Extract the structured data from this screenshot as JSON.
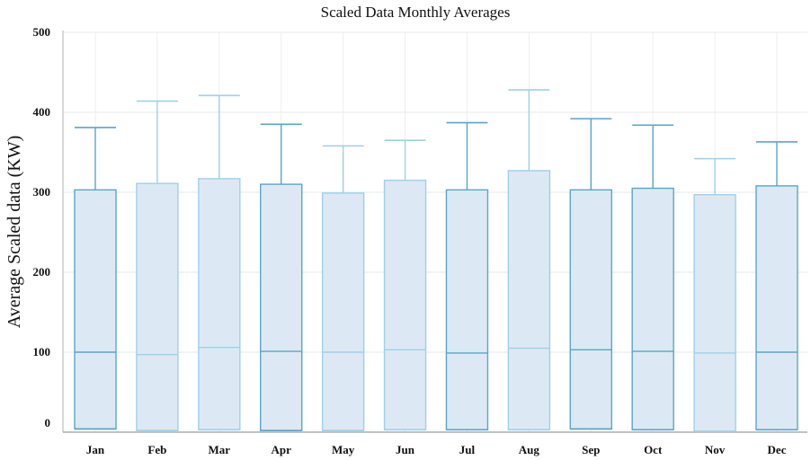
{
  "chart_data": {
    "type": "box",
    "title": "Scaled Data Monthly Averages",
    "xlabel": "",
    "ylabel": "Average Scaled data (KW)",
    "ylim": [
      0,
      500
    ],
    "y_ticks": [
      0,
      100,
      200,
      300,
      400,
      500
    ],
    "grid": true,
    "categories": [
      "Jan",
      "Feb",
      "Mar",
      "Apr",
      "May",
      "Jun",
      "Jul",
      "Aug",
      "Sep",
      "Oct",
      "Nov",
      "Dec"
    ],
    "series": [
      {
        "box_color": "#dce9f5",
        "line_colors": [
          "#5aa5c8",
          "#9fd0e6",
          "#9fd0e6",
          "#5aa5c8",
          "#9fd0e6",
          "#9fd0e6",
          "#5aa5c8",
          "#9fd0e6",
          "#5aa5c8",
          "#5aa5c8",
          "#9fd0e6",
          "#5aa5c8"
        ],
        "boxes": [
          {
            "min": 4,
            "q1": 4,
            "median": 100,
            "q3": 303,
            "max": 381
          },
          {
            "min": 2,
            "q1": 2,
            "median": 97,
            "q3": 311,
            "max": 414
          },
          {
            "min": 3,
            "q1": 3,
            "median": 106,
            "q3": 317,
            "max": 421
          },
          {
            "min": 2,
            "q1": 2,
            "median": 101,
            "q3": 310,
            "max": 385
          },
          {
            "min": 2,
            "q1": 2,
            "median": 100,
            "q3": 299,
            "max": 358
          },
          {
            "min": 3,
            "q1": 3,
            "median": 103,
            "q3": 315,
            "max": 365
          },
          {
            "min": 3,
            "q1": 3,
            "median": 99,
            "q3": 303,
            "max": 387
          },
          {
            "min": 3,
            "q1": 3,
            "median": 105,
            "q3": 327,
            "max": 428
          },
          {
            "min": 4,
            "q1": 4,
            "median": 103,
            "q3": 303,
            "max": 392
          },
          {
            "min": 3,
            "q1": 3,
            "median": 101,
            "q3": 305,
            "max": 384
          },
          {
            "min": 1,
            "q1": 1,
            "median": 99,
            "q3": 297,
            "max": 342
          },
          {
            "min": 3,
            "q1": 3,
            "median": 100,
            "q3": 308,
            "max": 363
          }
        ]
      }
    ]
  }
}
